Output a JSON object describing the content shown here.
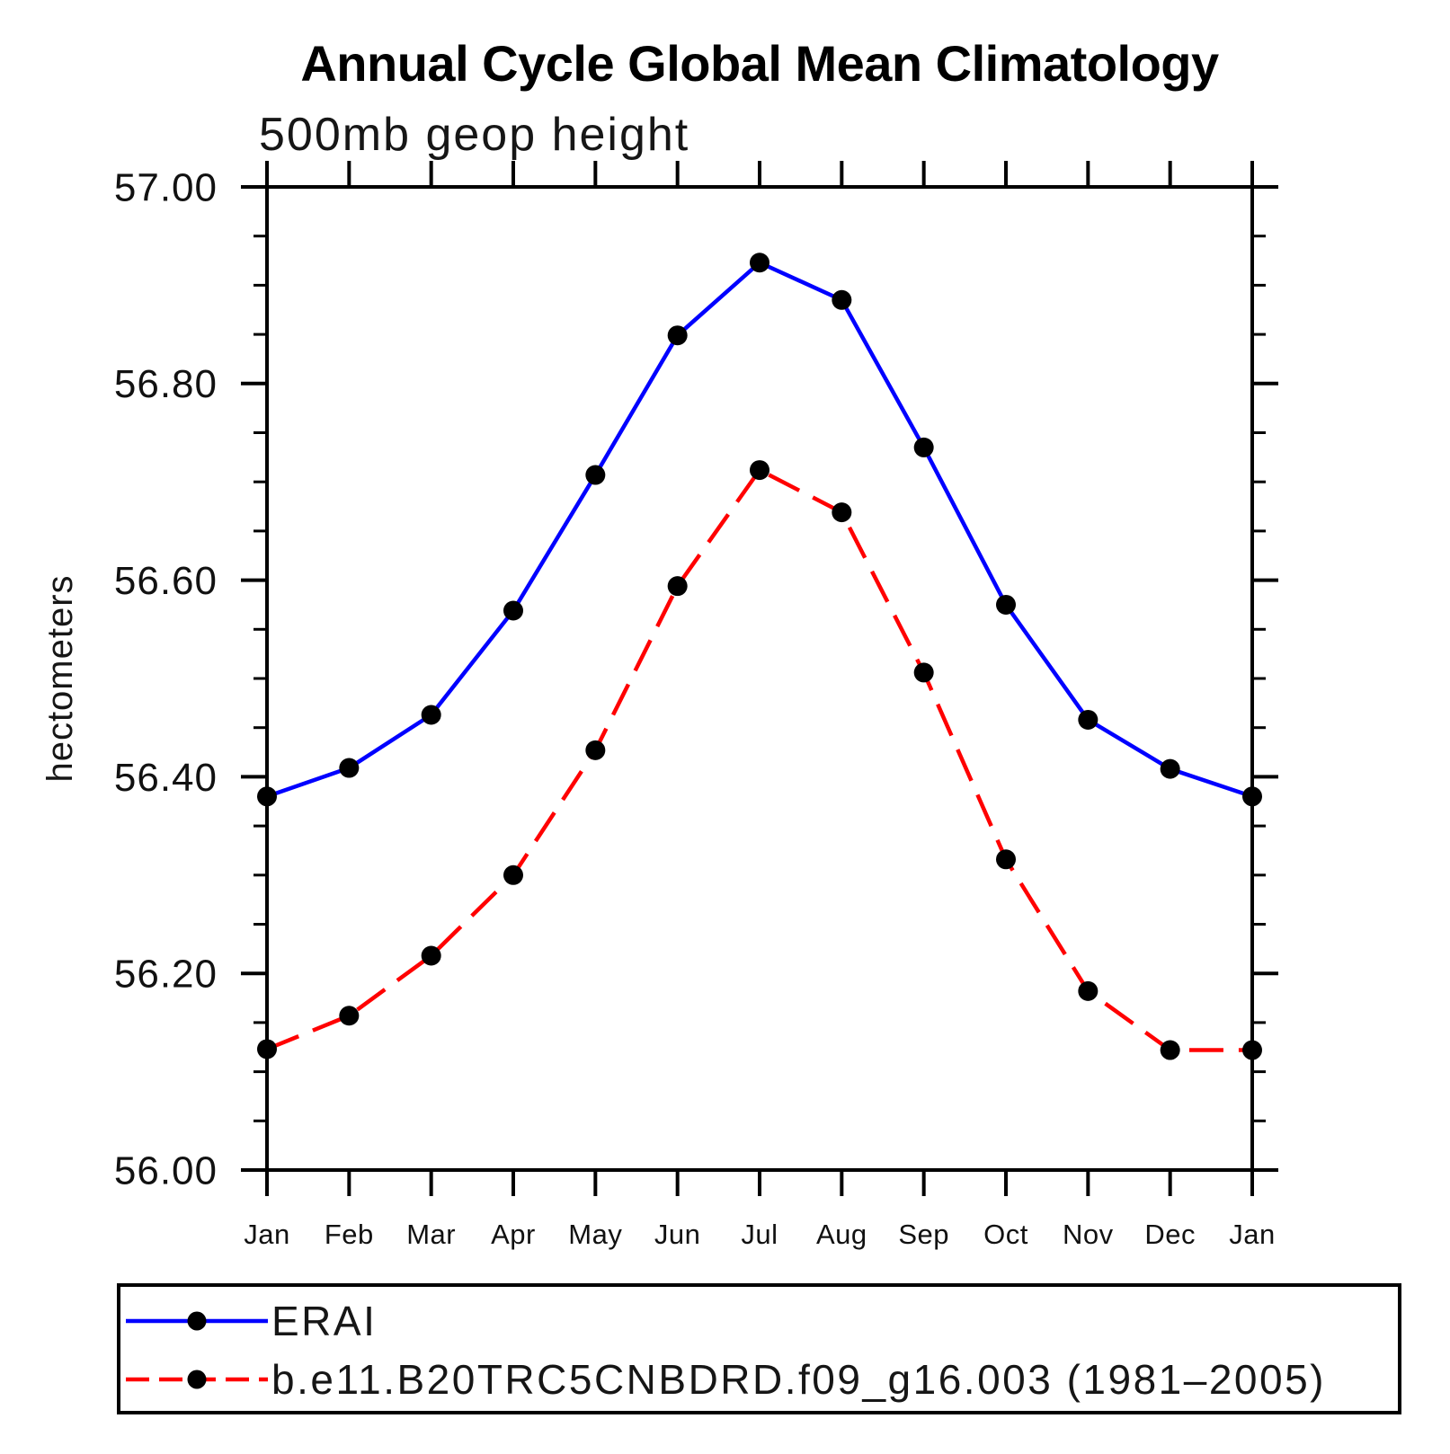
{
  "title": "Annual Cycle Global Mean Climatology",
  "subtitle": "500mb geop height",
  "y_axis": {
    "label": "hectometers",
    "tick_labels": [
      "57.00",
      "56.80",
      "56.60",
      "56.40",
      "56.20",
      "56.00"
    ]
  },
  "x_axis": {
    "tick_labels": [
      "Jan",
      "Feb",
      "Mar",
      "Apr",
      "May",
      "Jun",
      "Jul",
      "Aug",
      "Sep",
      "Oct",
      "Nov",
      "Dec",
      "Jan"
    ]
  },
  "legend": {
    "marker_color": "#000000",
    "entries": [
      {
        "label": "ERAI",
        "color": "#0000ff",
        "line_style": "solid"
      },
      {
        "label": "b.e11.B20TRC5CNBDRD.f09_g16.003 (1981–2005)",
        "color": "#ff0000",
        "line_style": "dashed"
      }
    ]
  },
  "chart_data": {
    "type": "line",
    "title": "Annual Cycle Global Mean Climatology",
    "subtitle": "500mb geop height",
    "xlabel": "",
    "ylabel": "hectometers",
    "categories": [
      "Jan",
      "Feb",
      "Mar",
      "Apr",
      "May",
      "Jun",
      "Jul",
      "Aug",
      "Sep",
      "Oct",
      "Nov",
      "Dec",
      "Jan"
    ],
    "ylim": [
      56.0,
      57.0
    ],
    "ytick_major_interval": 0.2,
    "ytick_minor_interval": 0.05,
    "grid": false,
    "legend_position": "bottom-left-box",
    "marker": "filled-circle",
    "marker_color": "#000000",
    "series": [
      {
        "name": "ERAI",
        "color": "#0000ff",
        "style": "solid",
        "values": [
          56.38,
          56.409,
          56.463,
          56.569,
          56.707,
          56.849,
          56.923,
          56.885,
          56.735,
          56.575,
          56.458,
          56.408,
          56.38
        ]
      },
      {
        "name": "b.e11.B20TRC5CNBDRD.f09_g16.003 (1981–2005)",
        "color": "#ff0000",
        "style": "dashed",
        "values": [
          56.123,
          56.157,
          56.218,
          56.3,
          56.427,
          56.594,
          56.712,
          56.669,
          56.506,
          56.316,
          56.182,
          56.122,
          56.122
        ]
      }
    ]
  }
}
